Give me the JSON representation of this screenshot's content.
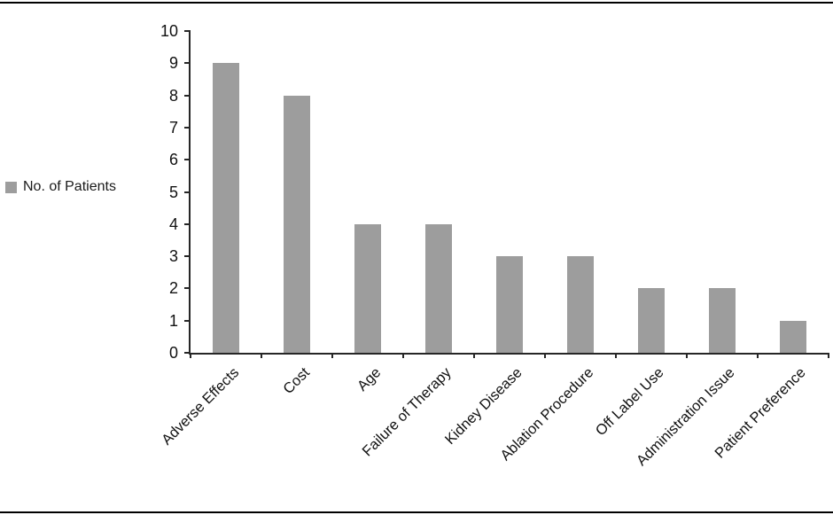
{
  "figure": {
    "background": "#ffffff",
    "border_rule_color": "#000000"
  },
  "legend": {
    "label": "No. of Patients",
    "swatch_color": "#9d9d9d",
    "position": "left-middle"
  },
  "chart_data": {
    "type": "bar",
    "title": "",
    "xlabel": "",
    "ylabel": "",
    "categories": [
      "Adverse Effects",
      "Cost",
      "Age",
      "Failure of Therapy",
      "Kidney Disease",
      "Ablation Procedure",
      "Off Label Use",
      "Administration Issue",
      "Patient Preference"
    ],
    "series": [
      {
        "name": "No. of Patients",
        "values": [
          9,
          8,
          4,
          4,
          3,
          3,
          2,
          2,
          1
        ]
      }
    ],
    "ylim": [
      0,
      10
    ],
    "ytick_step": 1,
    "grid": false,
    "legend_position": "left",
    "bar_color": "#9d9d9d",
    "axis_color": "#262626",
    "x_label_rotation_deg": -45
  }
}
